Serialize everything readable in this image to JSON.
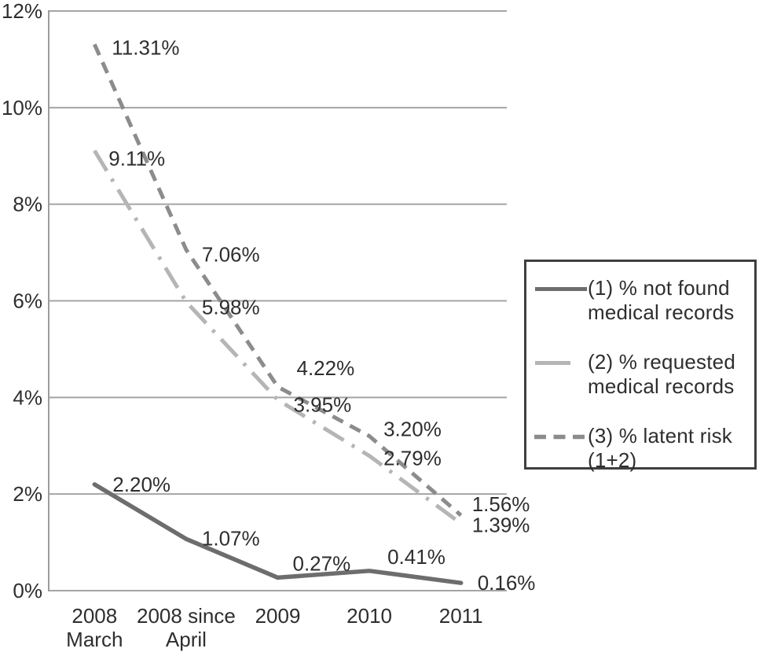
{
  "chart_data": {
    "type": "line",
    "title": "",
    "xlabel": "",
    "ylabel": "",
    "ylim": [
      0,
      12
    ],
    "grid": true,
    "legend_position": "right",
    "y_tick_labels": [
      "12%",
      "10%",
      "8%",
      "6%",
      "4%",
      "2%",
      "0%"
    ],
    "y_tick_values": [
      12,
      10,
      8,
      6,
      4,
      2,
      0
    ],
    "categories": [
      "2008 March",
      "2008 since April",
      "2009",
      "2010",
      "2011"
    ],
    "category_label_lines": [
      [
        "2008",
        "March"
      ],
      [
        "2008 since",
        "April"
      ],
      [
        "2009"
      ],
      [
        "2010"
      ],
      [
        "2011"
      ]
    ],
    "series": [
      {
        "name": "(1) % not found medical records",
        "values": [
          2.2,
          1.07,
          0.27,
          0.41,
          0.16
        ],
        "point_labels": [
          "2.20%",
          "1.07%",
          "0.27%",
          "0.41%",
          "0.16%"
        ],
        "color": "#6d6d6d",
        "line_style": "solid"
      },
      {
        "name": "(2) % requested medical records",
        "values": [
          9.11,
          5.98,
          3.95,
          2.79,
          1.39
        ],
        "point_labels": [
          "9.11%",
          "5.98%",
          "3.95%",
          "2.79%",
          "1.39%"
        ],
        "color": "#b5b5b5",
        "line_style": "dash-dot"
      },
      {
        "name": "(3) % latent risk (1+2)",
        "values": [
          11.31,
          7.06,
          4.22,
          3.2,
          1.56
        ],
        "point_labels": [
          "11.31%",
          "7.06%",
          "4.22%",
          "3.20%",
          "1.56%"
        ],
        "color": "#8c8c8c",
        "line_style": "dashed"
      }
    ]
  },
  "legend": {
    "entries": [
      {
        "line1": "(1) % not found",
        "line2": "medical records"
      },
      {
        "line1": "(2) % requested",
        "line2": "medical records"
      },
      {
        "line1": "(3) % latent risk",
        "line2": "(1+2)"
      }
    ]
  },
  "colors": {
    "text": "#2e2e2e",
    "gridline": "#a4a4a4",
    "axis": "#9d9d9d",
    "legend_border": "#3f3f3f",
    "background": "#ffffff"
  }
}
